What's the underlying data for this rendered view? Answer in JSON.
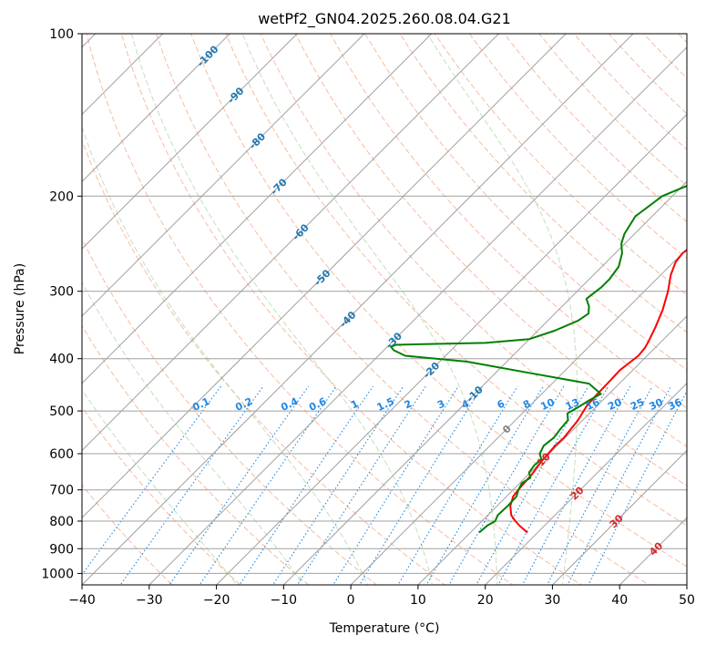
{
  "chart_data": {
    "type": "line",
    "subtype": "skew-t log-p diagram",
    "title": "wetPf2_GN04.2025.260.08.04.G21",
    "xlabel": "Temperature (°C)",
    "ylabel": "Pressure (hPa)",
    "xlim": [
      -40,
      50
    ],
    "ylim_hpa": [
      1050,
      100
    ],
    "x_ticks": [
      "−40",
      "−30",
      "−20",
      "−10",
      "0",
      "10",
      "20",
      "30",
      "40",
      "50"
    ],
    "x_tick_values": [
      -40,
      -30,
      -20,
      -10,
      0,
      10,
      20,
      30,
      40,
      50
    ],
    "y_ticks": [
      "100",
      "200",
      "300",
      "400",
      "500",
      "600",
      "700",
      "800",
      "900",
      "1000"
    ],
    "y_tick_values": [
      100,
      200,
      300,
      400,
      500,
      600,
      700,
      800,
      900,
      1000
    ],
    "grid": true,
    "colors": {
      "temperature": "#ff0000",
      "dewpoint": "#008000",
      "isotherm": "#a0a0a0",
      "isotherm_label": "#1f77b4",
      "dry_adiabat": "#f4a582",
      "moist_adiabat": "#a6d3a0",
      "mixing_ratio": "#1e88e5",
      "ice_label": "#d62728",
      "zero_label": "#808080",
      "boundary": "#d2b48c"
    },
    "series": [
      {
        "name": "Temperature",
        "points": [
          [
            18.5,
            840
          ],
          [
            16.5,
            818
          ],
          [
            15,
            800
          ],
          [
            13.5,
            780
          ],
          [
            12,
            750
          ],
          [
            11,
            720
          ],
          [
            10.7,
            690
          ],
          [
            10.5,
            655
          ],
          [
            10,
            620
          ],
          [
            9.7,
            580
          ],
          [
            9.8,
            560
          ],
          [
            9.3,
            520
          ],
          [
            8.5,
            490
          ],
          [
            8.3,
            470
          ],
          [
            8.2,
            440
          ],
          [
            8.1,
            420
          ],
          [
            8.7,
            395
          ],
          [
            8.5,
            382
          ],
          [
            8,
            370
          ],
          [
            7,
            350
          ],
          [
            5.5,
            325
          ],
          [
            3.5,
            300
          ],
          [
            1.5,
            280
          ],
          [
            0.3,
            265
          ],
          [
            0,
            255
          ],
          [
            0.5,
            245
          ],
          [
            2,
            236
          ],
          [
            4.5,
            228
          ],
          [
            8,
            218
          ],
          [
            11,
            208
          ],
          [
            13.5,
            198
          ],
          [
            15,
            186
          ],
          [
            16.5,
            172
          ],
          [
            18.5,
            160
          ],
          [
            20,
            152
          ],
          [
            21,
            143
          ],
          [
            21.8,
            137
          ],
          [
            22.3,
            128
          ],
          [
            23.2,
            118
          ],
          [
            25,
            110
          ],
          [
            26.5,
            104
          ],
          [
            27.3,
            100
          ]
        ],
        "values_note": "[temperature °C, pressure hPa]"
      },
      {
        "name": "Dewpoint",
        "points": [
          [
            11.3,
            840
          ],
          [
            11.5,
            815
          ],
          [
            12,
            800
          ],
          [
            11.5,
            780
          ],
          [
            11.6,
            750
          ],
          [
            11.5,
            720
          ],
          [
            10.8,
            700
          ],
          [
            10.3,
            680
          ],
          [
            10.8,
            665
          ],
          [
            9.8,
            650
          ],
          [
            9.5,
            630
          ],
          [
            9.7,
            615
          ],
          [
            8.6,
            600
          ],
          [
            8,
            580
          ],
          [
            8.3,
            560
          ],
          [
            8,
            540
          ],
          [
            7.8,
            520
          ],
          [
            6.7,
            505
          ],
          [
            7.5,
            490
          ],
          [
            8,
            478
          ],
          [
            8.8,
            465
          ],
          [
            5.5,
            445
          ],
          [
            -5,
            425
          ],
          [
            -16,
            405
          ],
          [
            -26,
            395
          ],
          [
            -28.5,
            386
          ],
          [
            -29.5,
            380
          ],
          [
            -29,
            377
          ],
          [
            -25,
            376
          ],
          [
            -16,
            374
          ],
          [
            -10,
            368
          ],
          [
            -7.5,
            355
          ],
          [
            -5.5,
            340
          ],
          [
            -5,
            330
          ],
          [
            -6,
            320
          ],
          [
            -7.5,
            310
          ],
          [
            -7,
            295
          ],
          [
            -7,
            285
          ],
          [
            -7.5,
            270
          ],
          [
            -9,
            255
          ],
          [
            -10.5,
            245
          ],
          [
            -11.5,
            235
          ],
          [
            -12.5,
            218
          ],
          [
            -11.5,
            200
          ],
          [
            -9,
            190
          ],
          [
            -6.5,
            178
          ],
          [
            -7,
            170
          ],
          [
            -9,
            163
          ],
          [
            -11,
            155
          ],
          [
            -12,
            145
          ],
          [
            -11,
            137
          ],
          [
            -8.5,
            128
          ],
          [
            -5,
            117
          ],
          [
            -2.5,
            108
          ],
          [
            -1,
            100
          ]
        ],
        "values_note": "[dewpoint °C, pressure hPa]"
      }
    ],
    "isotherm_labels": [
      {
        "T": -100,
        "p": 110,
        "text": "-100"
      },
      {
        "T": -90,
        "p": 130,
        "text": "-90"
      },
      {
        "T": -80,
        "p": 158,
        "text": "-80"
      },
      {
        "T": -70,
        "p": 192,
        "text": "-70"
      },
      {
        "T": -60,
        "p": 233,
        "text": "-60"
      },
      {
        "T": -50,
        "p": 283,
        "text": "-50"
      },
      {
        "T": -40,
        "p": 338,
        "text": "-40"
      },
      {
        "T": -30,
        "p": 370,
        "text": "-30"
      },
      {
        "T": -20,
        "p": 420,
        "text": "-20"
      },
      {
        "T": -10,
        "p": 465,
        "text": "-10"
      },
      {
        "T": 0,
        "p": 540,
        "text": "0"
      },
      {
        "T": 10,
        "p": 615,
        "text": "10"
      },
      {
        "T": 20,
        "p": 710,
        "text": "20"
      },
      {
        "T": 30,
        "p": 800,
        "text": "30"
      },
      {
        "T": 40,
        "p": 900,
        "text": "40"
      }
    ],
    "mixing_ratio_lines": [
      0.1,
      0.2,
      0.4,
      0.6,
      1,
      1.5,
      2,
      3,
      4,
      6,
      8,
      10,
      13,
      16,
      20,
      25,
      30,
      36
    ],
    "mixing_ratio_labels": [
      "0.1",
      "0.2",
      "0.4",
      "0.6",
      "1",
      "1.5",
      "2",
      "3",
      "4",
      "6",
      "8",
      "10",
      "13",
      "16",
      "20",
      "25",
      "30",
      "36"
    ],
    "mixing_ratio_label_pressure": 500,
    "dry_adiabats_theta_c": [
      -30,
      -20,
      -10,
      0,
      10,
      20,
      30,
      40,
      50,
      60,
      70,
      80,
      90,
      100,
      110,
      120,
      130,
      140,
      150,
      160,
      170,
      180,
      190
    ],
    "moist_adiabats_thetaw_c": [
      -20,
      -10,
      0,
      10,
      20,
      30
    ],
    "skew_degrees": 45
  }
}
